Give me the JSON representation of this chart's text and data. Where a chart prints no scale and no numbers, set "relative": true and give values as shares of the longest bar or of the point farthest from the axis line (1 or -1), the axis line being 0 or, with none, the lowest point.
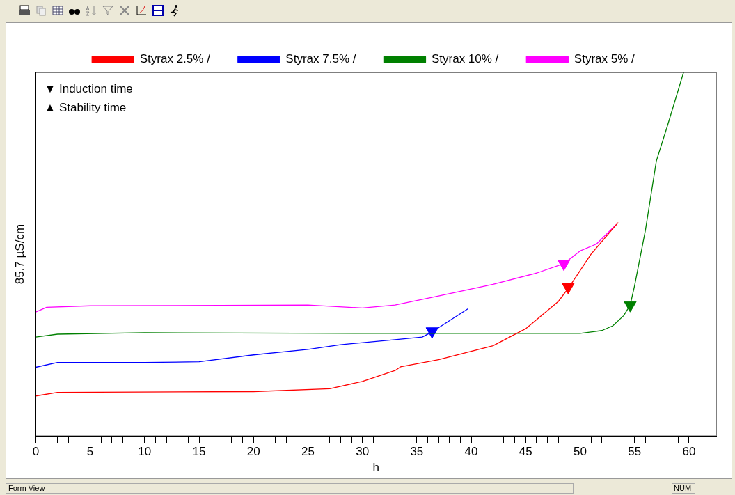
{
  "chart_data": {
    "type": "line",
    "xlabel": "h",
    "ylabel": "85.7 µS/cm",
    "relative": true,
    "legend": "top",
    "grid": false,
    "marker": "none",
    "line_style": "solid",
    "xlim": [
      0,
      62.5
    ],
    "xticks": [
      0,
      {
        "value": 1,
        "label": null
      },
      {
        "value": 2,
        "label": null
      },
      {
        "value": 3,
        "label": null
      },
      {
        "value": 4,
        "label": null
      },
      5,
      {
        "value": 6,
        "label": null
      },
      {
        "value": 7,
        "label": null
      },
      {
        "value": 8,
        "label": null
      },
      {
        "value": 9,
        "label": null
      },
      10,
      {
        "value": 11,
        "label": null
      },
      {
        "value": 12,
        "label": null
      },
      {
        "value": 13,
        "label": null
      },
      {
        "value": 14,
        "label": null
      },
      15,
      {
        "value": 16,
        "label": null
      },
      {
        "value": 17,
        "label": null
      },
      {
        "value": 18,
        "label": null
      },
      {
        "value": 19,
        "label": null
      },
      20,
      {
        "value": 21,
        "label": null
      },
      {
        "value": 22,
        "label": null
      },
      {
        "value": 23,
        "label": null
      },
      {
        "value": 24,
        "label": null
      },
      25,
      {
        "value": 26,
        "label": null
      },
      {
        "value": 27,
        "label": null
      },
      {
        "value": 28,
        "label": null
      },
      {
        "value": 29,
        "label": null
      },
      30,
      {
        "value": 31,
        "label": null
      },
      {
        "value": 32,
        "label": null
      },
      {
        "value": 33,
        "label": null
      },
      {
        "value": 34,
        "label": null
      },
      35,
      {
        "value": 36,
        "label": null
      },
      {
        "value": 37,
        "label": null
      },
      {
        "value": 38,
        "label": null
      },
      {
        "value": 39,
        "label": null
      },
      40,
      {
        "value": 41,
        "label": null
      },
      {
        "value": 42,
        "label": null
      },
      {
        "value": 43,
        "label": null
      },
      {
        "value": 44,
        "label": null
      },
      45,
      {
        "value": 46,
        "label": null
      },
      {
        "value": 47,
        "label": null
      },
      {
        "value": 48,
        "label": null
      },
      {
        "value": 49,
        "label": null
      },
      50,
      {
        "value": 51,
        "label": null
      },
      {
        "value": 52,
        "label": null
      },
      {
        "value": 53,
        "label": null
      },
      {
        "value": 54,
        "label": null
      },
      55,
      {
        "value": 56,
        "label": null
      },
      {
        "value": 57,
        "label": null
      },
      {
        "value": 58,
        "label": null
      },
      {
        "value": 59,
        "label": null
      },
      60,
      {
        "value": 61,
        "label": null
      },
      {
        "value": 62,
        "label": null
      }
    ],
    "series": [
      {
        "name": "Styrax 2.5% /",
        "color": "#ff0000",
        "x": [
          0,
          2,
          20,
          27,
          30,
          33,
          33.5,
          37,
          42,
          45,
          48,
          49,
          51,
          53,
          53.5
        ],
        "values": [
          0.11,
          0.12,
          0.122,
          0.13,
          0.15,
          0.18,
          0.19,
          0.21,
          0.248,
          0.295,
          0.37,
          0.41,
          0.5,
          0.57,
          0.587
        ]
      },
      {
        "name": "Styrax 7.5% /",
        "color": "#0000ff",
        "x": [
          0,
          2,
          10,
          15,
          20,
          25,
          28,
          33,
          35.5,
          36.5,
          39.7
        ],
        "values": [
          0.189,
          0.202,
          0.202,
          0.204,
          0.223,
          0.238,
          0.251,
          0.265,
          0.272,
          0.288,
          0.35
        ]
      },
      {
        "name": "Styrax 10% /",
        "color": "#008000",
        "x": [
          0,
          2,
          10,
          30,
          50,
          51,
          52,
          53,
          54,
          54.6,
          55,
          56,
          57,
          58,
          59.5
        ],
        "values": [
          0.272,
          0.28,
          0.284,
          0.282,
          0.282,
          0.286,
          0.29,
          0.303,
          0.331,
          0.36,
          0.413,
          0.566,
          0.756,
          0.851,
          1.0
        ]
      },
      {
        "name": "Styrax 5% /",
        "color": "#ff00ff",
        "x": [
          0,
          1,
          5,
          25,
          30,
          33,
          37,
          42,
          46,
          48.5,
          50,
          51.5,
          53.3
        ],
        "values": [
          0.341,
          0.354,
          0.358,
          0.36,
          0.352,
          0.36,
          0.385,
          0.417,
          0.448,
          0.474,
          0.509,
          0.528,
          0.581
        ]
      },
      {
        "type": "scatter",
        "marker": "triangle",
        "x": [
          48.9,
          36.4,
          54.6,
          48.5
        ],
        "values": [
          0.41,
          0.288,
          0.36,
          0.474
        ],
        "colors": [
          "#ff0000",
          "#0000ff",
          "#008000",
          "#ff00ff"
        ]
      }
    ],
    "annotations": [
      "▼ Induction time",
      "▲ Stability time",
      "Form View",
      "NUM"
    ]
  }
}
